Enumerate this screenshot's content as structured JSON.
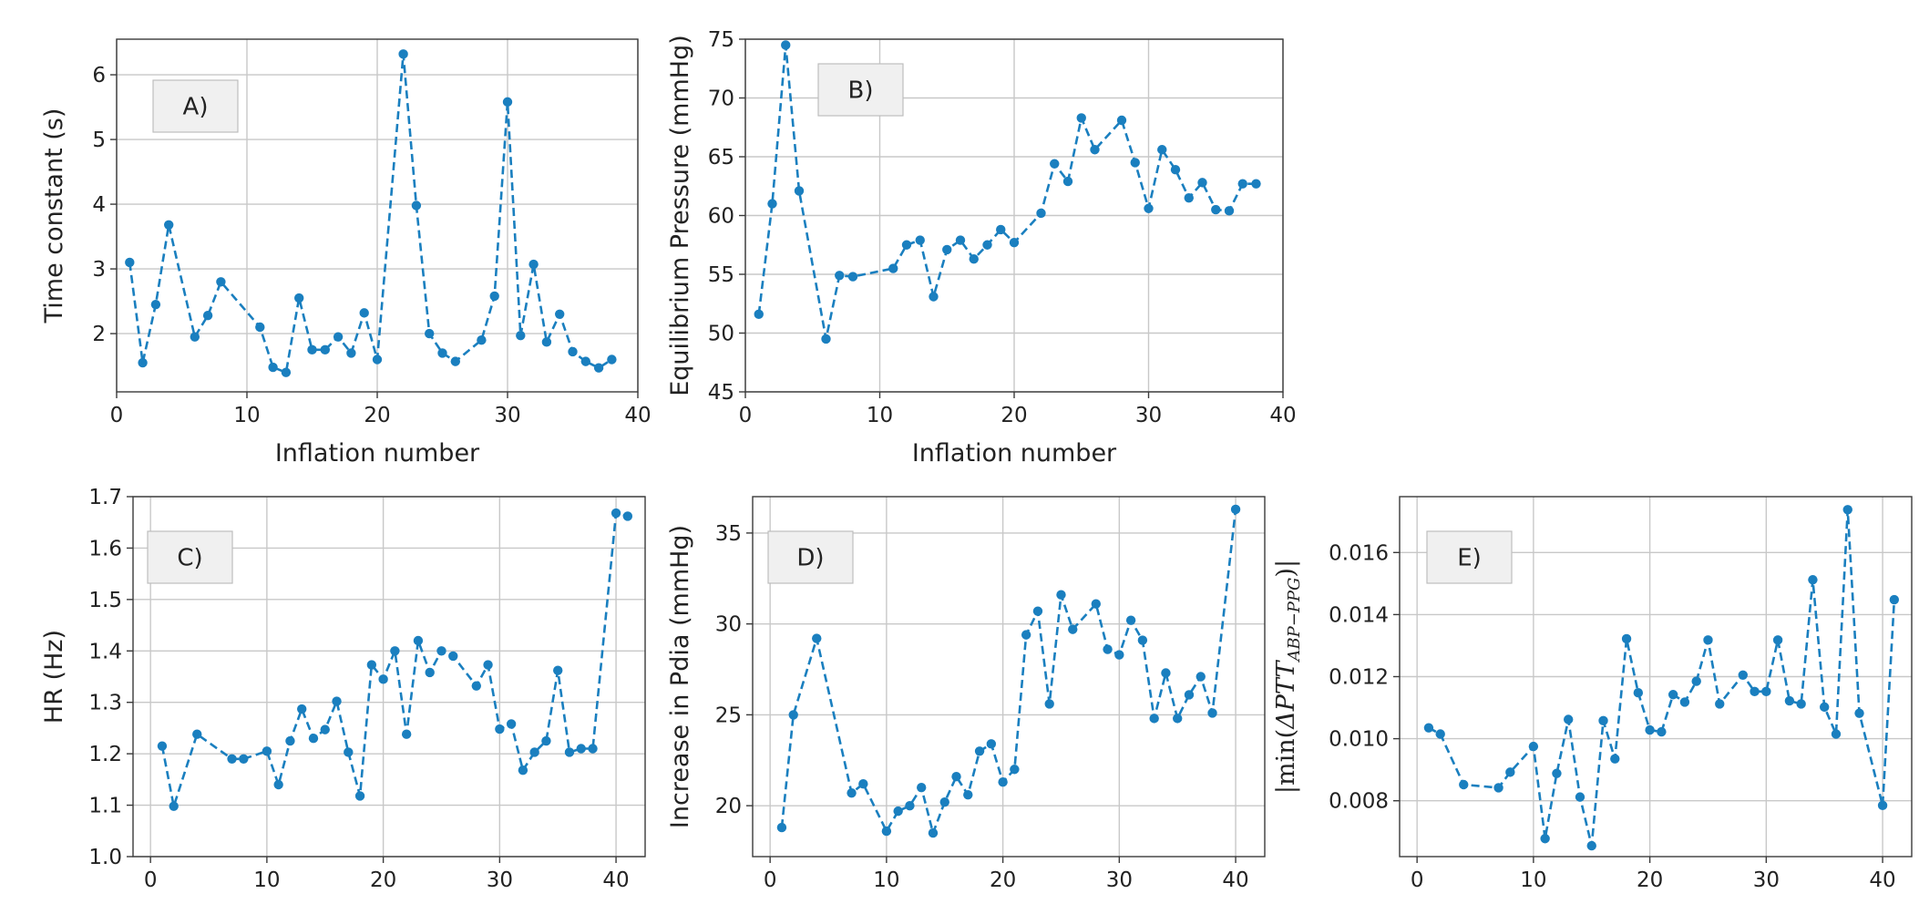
{
  "chart_data": [
    {
      "id": "A",
      "type": "line",
      "tag": "A)",
      "xlabel": "Inflation number",
      "ylabel": "Time constant (s)",
      "xlim": [
        0,
        40
      ],
      "ylim": [
        1.1,
        6.55
      ],
      "xticks": [
        0,
        10,
        20,
        30,
        40
      ],
      "yticks": [
        2,
        3,
        4,
        5,
        6
      ],
      "x": [
        1,
        2,
        3,
        4,
        6,
        7,
        8,
        11,
        12,
        13,
        14,
        15,
        16,
        17,
        18,
        19,
        20,
        22,
        23,
        24,
        25,
        26,
        28,
        29,
        30,
        31,
        32,
        33,
        34,
        35,
        36,
        37,
        38
      ],
      "y": [
        3.1,
        1.55,
        2.45,
        3.68,
        1.95,
        2.28,
        2.8,
        2.1,
        1.48,
        1.4,
        2.55,
        1.75,
        1.75,
        1.95,
        1.7,
        2.32,
        1.6,
        6.32,
        3.98,
        2.0,
        1.7,
        1.57,
        1.9,
        2.58,
        5.58,
        1.97,
        3.07,
        1.87,
        2.3,
        1.72,
        1.57,
        1.47,
        1.6
      ]
    },
    {
      "id": "B",
      "type": "line",
      "tag": "B)",
      "xlabel": "Inflation number",
      "ylabel": "Equilibrium Pressure (mmHg)",
      "xlim": [
        0,
        40
      ],
      "ylim": [
        45,
        75
      ],
      "xticks": [
        0,
        10,
        20,
        30,
        40
      ],
      "yticks": [
        45,
        50,
        55,
        60,
        65,
        70,
        75
      ],
      "x": [
        1,
        2,
        3,
        4,
        6,
        7,
        8,
        11,
        12,
        13,
        14,
        15,
        16,
        17,
        18,
        19,
        20,
        22,
        23,
        24,
        25,
        26,
        28,
        29,
        30,
        31,
        32,
        33,
        34,
        35,
        36,
        37,
        38
      ],
      "y": [
        51.6,
        61.0,
        74.5,
        62.1,
        49.5,
        54.9,
        54.8,
        55.5,
        57.5,
        57.9,
        53.1,
        57.1,
        57.9,
        56.3,
        57.5,
        58.8,
        57.7,
        60.2,
        64.4,
        62.9,
        68.3,
        65.6,
        68.1,
        64.5,
        60.6,
        65.6,
        63.9,
        61.5,
        62.8,
        60.5,
        60.4,
        62.7,
        62.7
      ]
    },
    {
      "id": "C",
      "type": "line",
      "tag": "C)",
      "xlabel": "Inflation number",
      "ylabel": "HR (Hz)",
      "xlim": [
        -1.5,
        42.5
      ],
      "ylim": [
        1.0,
        1.7
      ],
      "xticks": [
        0,
        10,
        20,
        30,
        40
      ],
      "yticks": [
        1.0,
        1.1,
        1.2,
        1.3,
        1.4,
        1.5,
        1.6,
        1.7
      ],
      "ytickfmt": 1,
      "x": [
        1,
        2,
        4,
        7,
        8,
        10,
        11,
        12,
        13,
        14,
        15,
        16,
        17,
        18,
        19,
        20,
        21,
        22,
        23,
        24,
        25,
        26,
        28,
        29,
        30,
        31,
        32,
        33,
        34,
        35,
        36,
        37,
        38,
        40,
        41
      ],
      "y": [
        1.215,
        1.098,
        1.238,
        1.19,
        1.19,
        1.205,
        1.14,
        1.225,
        1.287,
        1.23,
        1.247,
        1.302,
        1.203,
        1.118,
        1.373,
        1.345,
        1.4,
        1.238,
        1.42,
        1.358,
        1.4,
        1.39,
        1.332,
        1.373,
        1.248,
        1.258,
        1.168,
        1.203,
        1.225,
        1.362,
        1.203,
        1.21,
        1.21,
        1.668,
        1.662
      ]
    },
    {
      "id": "D",
      "type": "line",
      "tag": "D)",
      "xlabel": "Inflation number",
      "ylabel": "Increase in Pdia (mmHg)",
      "xlim": [
        -1.5,
        42.5
      ],
      "ylim": [
        17.2,
        37.0
      ],
      "xticks": [
        0,
        10,
        20,
        30,
        40
      ],
      "yticks": [
        20,
        25,
        30,
        35
      ],
      "x": [
        1,
        2,
        4,
        7,
        8,
        10,
        11,
        12,
        13,
        14,
        15,
        16,
        17,
        18,
        19,
        20,
        21,
        22,
        23,
        24,
        25,
        26,
        28,
        29,
        30,
        31,
        32,
        33,
        34,
        35,
        36,
        37,
        38,
        40
      ],
      "y": [
        18.8,
        25.0,
        29.2,
        20.7,
        21.2,
        18.6,
        19.7,
        20.0,
        21.0,
        18.5,
        20.2,
        21.6,
        20.6,
        23.0,
        23.4,
        21.3,
        22.0,
        29.4,
        30.7,
        25.6,
        31.6,
        29.7,
        31.1,
        28.6,
        28.3,
        30.2,
        29.1,
        24.8,
        27.3,
        24.8,
        26.1,
        27.1,
        25.1,
        36.3
      ]
    },
    {
      "id": "E",
      "type": "line",
      "tag": "E)",
      "xlabel": "Inflation number",
      "ylabel_prefix": "|min(",
      "ylabel_italic": "ΔPTT",
      "ylabel_sub": "ABP−PPG",
      "ylabel_suffix": ")|",
      "xlim": [
        -1.5,
        42.5
      ],
      "ylim": [
        0.0062,
        0.0178
      ],
      "xticks": [
        0,
        10,
        20,
        30,
        40
      ],
      "yticks": [
        0.008,
        0.01,
        0.012,
        0.014,
        0.016
      ],
      "ytickfmt": 3,
      "x": [
        1,
        2,
        4,
        7,
        8,
        10,
        11,
        12,
        13,
        14,
        15,
        16,
        17,
        18,
        19,
        20,
        21,
        22,
        23,
        24,
        25,
        26,
        28,
        29,
        30,
        31,
        32,
        33,
        34,
        35,
        36,
        37,
        38,
        40,
        41
      ],
      "y": [
        0.01035,
        0.01015,
        0.00852,
        0.00842,
        0.00892,
        0.00975,
        0.00678,
        0.00888,
        0.01062,
        0.00812,
        0.00655,
        0.01058,
        0.00935,
        0.01322,
        0.01148,
        0.01028,
        0.01022,
        0.01142,
        0.01118,
        0.01185,
        0.01318,
        0.01112,
        0.01205,
        0.01152,
        0.01152,
        0.01318,
        0.01122,
        0.01112,
        0.01512,
        0.01102,
        0.01015,
        0.01738,
        0.01082,
        0.00785,
        0.01448
      ]
    }
  ]
}
